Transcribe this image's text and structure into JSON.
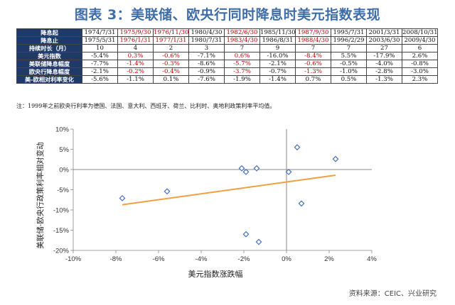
{
  "title": "图表 3：美联储、欧央行同时降息时美元指数表现",
  "table": {
    "rows": [
      {
        "label": "降息起",
        "header": true,
        "cells": [
          "1974/7/31",
          "1975/9/30",
          "1976/11/30",
          "1980/4/30",
          "1982/6/30",
          "1985/11/30",
          "1987/9/30",
          "1995/7/31",
          "2001/3/31",
          "2008/10/31"
        ],
        "red": [
          false,
          true,
          true,
          false,
          true,
          false,
          true,
          false,
          false,
          false
        ]
      },
      {
        "label": "降息止",
        "header": true,
        "cells": [
          "1975/5/31",
          "1976/1/31",
          "1977/1/31",
          "1980/7/31",
          "1983/4/30",
          "1986/8/31",
          "1988/4/30",
          "1996/2/29",
          "2003/6/30",
          "2009/4/30"
        ],
        "red": [
          false,
          true,
          true,
          false,
          true,
          false,
          true,
          false,
          false,
          false
        ]
      },
      {
        "label": "持续时长（月）",
        "header": false,
        "cells": [
          "10",
          "4",
          "2",
          "3",
          "7",
          "9",
          "7",
          "7",
          "27",
          "6"
        ],
        "red": [
          false,
          false,
          false,
          false,
          false,
          false,
          false,
          false,
          false,
          false
        ]
      },
      {
        "label": "美元指数",
        "header": false,
        "cells": [
          "-5.4%",
          "0.3%",
          "-0.6%",
          "-7.1%",
          "0.6%",
          "-16.0%",
          "-8.4%",
          "5.5%",
          "-17.9%",
          "2.6%"
        ],
        "red": [
          false,
          true,
          true,
          false,
          true,
          false,
          true,
          false,
          false,
          false
        ]
      },
      {
        "label": "美联储降息幅度",
        "header": false,
        "cells": [
          "-7.7%",
          "-1.4%",
          "-0.3%",
          "-8.6%",
          "-5.7%",
          "-2.1%",
          "-0.6%",
          "-0.5%",
          "-4.0%",
          "-0.8%"
        ],
        "red": [
          false,
          true,
          true,
          false,
          true,
          false,
          true,
          false,
          false,
          false
        ]
      },
      {
        "label": "欧央行降息幅度",
        "header": false,
        "cells": [
          "-2.1%",
          "-0.2%",
          "-0.4%",
          "-0.9%",
          "-3.7%",
          "-0.7%",
          "-1.3%",
          "-1.0%",
          "-2.8%",
          "-3.0%"
        ],
        "red": [
          false,
          true,
          true,
          false,
          true,
          false,
          true,
          false,
          false,
          false
        ]
      },
      {
        "label": "美-欧相对利率变化",
        "header": false,
        "cells": [
          "-5.6%",
          "-1.1%",
          "0.1%",
          "-7.6%",
          "-1.9%",
          "-1.4%",
          "0.7%",
          "0.5%",
          "-1.3%",
          "2.3%"
        ],
        "red": [
          false,
          false,
          false,
          false,
          false,
          false,
          false,
          false,
          false,
          false
        ]
      }
    ]
  },
  "note": "注：1999年之前欧央行利率为德国、法国、意大利、西班牙、荷兰、比利时、奥地利政策利率平均值。",
  "chart_data": {
    "type": "scatter",
    "xlabel": "美元指数涨跌幅",
    "ylabel": "美联储-欧央行政策利率相对变动",
    "xlim": [
      -10,
      4
    ],
    "ylim": [
      -20,
      10
    ],
    "xticks": [
      -10,
      -8,
      -6,
      -4,
      -2,
      0,
      2,
      4
    ],
    "xtick_labels": [
      "-10%",
      "-8%",
      "-6%",
      "-4%",
      "-2%",
      "0%",
      "2%",
      "4%"
    ],
    "yticks": [
      10,
      5,
      0,
      -5,
      -10,
      -15,
      -20
    ],
    "ytick_labels": [
      "10%",
      "5%",
      "0%",
      "-5%",
      "-10%",
      "-15%",
      "-20%"
    ],
    "grid": false,
    "points": [
      {
        "x": -7.7,
        "y": -7.1
      },
      {
        "x": -5.6,
        "y": -5.4
      },
      {
        "x": -2.1,
        "y": 0.3
      },
      {
        "x": -1.4,
        "y": 0.3
      },
      {
        "x": -1.9,
        "y": -0.6
      },
      {
        "x": -1.9,
        "y": -16.0
      },
      {
        "x": -1.3,
        "y": -17.9
      },
      {
        "x": 0.1,
        "y": -0.6
      },
      {
        "x": 0.5,
        "y": 5.5
      },
      {
        "x": 0.7,
        "y": -8.4
      },
      {
        "x": 2.3,
        "y": 2.6
      }
    ],
    "trendline": {
      "x": [
        -7.7,
        2.3
      ],
      "y": [
        -8.7,
        -1.4
      ]
    },
    "colors": {
      "marker": "#4a72b8",
      "trend": "#f0a040",
      "axis": "#888888"
    }
  },
  "source": "资料来源：CEIC、兴业研究"
}
